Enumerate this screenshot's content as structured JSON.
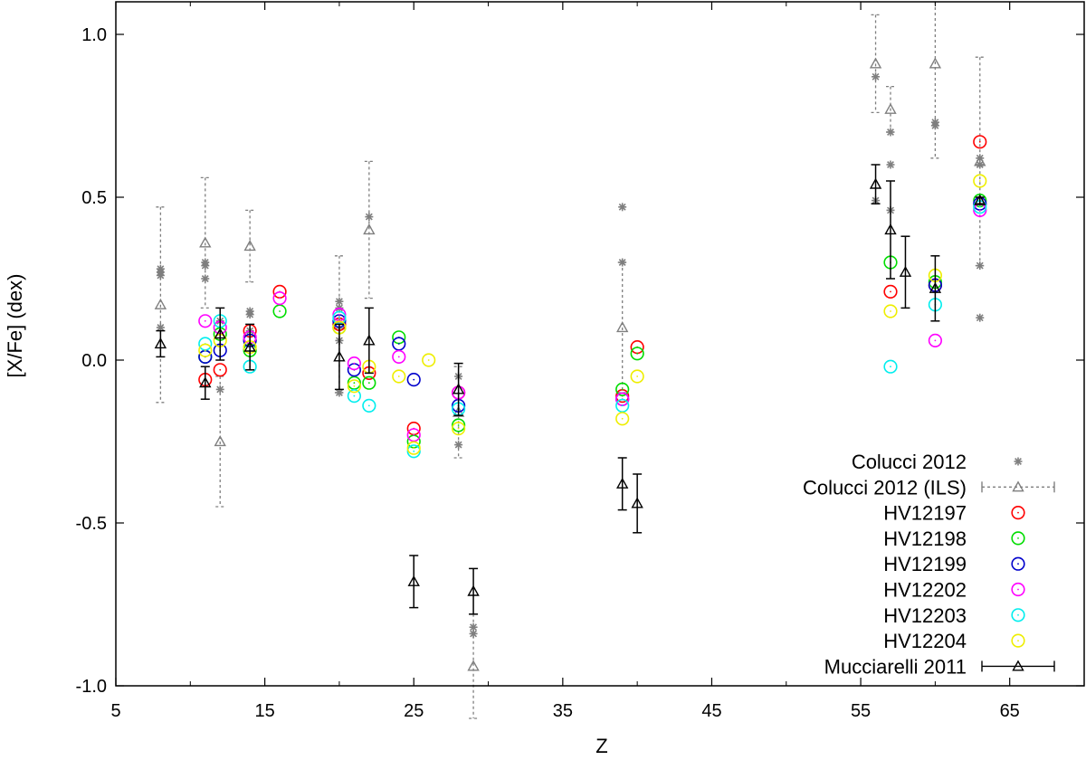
{
  "chart_data": {
    "type": "scatter",
    "xlabel": "Z",
    "ylabel": "[X/Fe] (dex)",
    "xlim": [
      5,
      70
    ],
    "ylim": [
      -1.0,
      1.1
    ],
    "x_ticks": [
      5,
      15,
      25,
      35,
      45,
      55,
      65
    ],
    "y_ticks": [
      -1.0,
      -0.5,
      0.0,
      0.5,
      1.0
    ],
    "x_tick_labels": [
      "5",
      "15",
      "25",
      "35",
      "45",
      "55",
      "65"
    ],
    "y_tick_labels": [
      "-1.0",
      "-0.5",
      "0.0",
      "0.5",
      "1.0"
    ],
    "grid": false,
    "legend_position": "bottom-right",
    "series": [
      {
        "name": "Colucci 2012",
        "marker": "asterisk",
        "color": "#7f7f7f",
        "points": [
          [
            8,
            0.28
          ],
          [
            8,
            0.27
          ],
          [
            8,
            0.26
          ],
          [
            8,
            0.1
          ],
          [
            11,
            0.3
          ],
          [
            11,
            0.29
          ],
          [
            11,
            0.25
          ],
          [
            12,
            0.12
          ],
          [
            12,
            -0.09
          ],
          [
            14,
            0.15
          ],
          [
            14,
            0.14
          ],
          [
            14,
            0.09
          ],
          [
            20,
            0.18
          ],
          [
            20,
            0.16
          ],
          [
            20,
            0.06
          ],
          [
            20,
            -0.1
          ],
          [
            22,
            0.44
          ],
          [
            28,
            -0.05
          ],
          [
            28,
            -0.26
          ],
          [
            29,
            -0.82
          ],
          [
            29,
            -0.84
          ],
          [
            39,
            0.47
          ],
          [
            39,
            0.3
          ],
          [
            56,
            0.87
          ],
          [
            56,
            0.49
          ],
          [
            57,
            0.7
          ],
          [
            57,
            0.6
          ],
          [
            57,
            0.46
          ],
          [
            60,
            0.73
          ],
          [
            60,
            0.72
          ],
          [
            63,
            0.62
          ],
          [
            63,
            0.6
          ],
          [
            63,
            0.29
          ],
          [
            63,
            0.13
          ]
        ]
      },
      {
        "name": "Colucci 2012 (ILS)",
        "marker": "triangle",
        "color": "#7f7f7f",
        "points": [
          [
            8,
            0.17,
            0.3
          ],
          [
            11,
            0.36,
            0.2
          ],
          [
            12,
            -0.25,
            0.2
          ],
          [
            14,
            0.35,
            0.11
          ],
          [
            20,
            0.11,
            0.21
          ],
          [
            22,
            0.4,
            0.21
          ],
          [
            28,
            -0.16,
            0.14
          ],
          [
            29,
            -0.94,
            0.16
          ],
          [
            39,
            0.1,
            0.2
          ],
          [
            56,
            0.91,
            0.15
          ],
          [
            57,
            0.77,
            0.07
          ],
          [
            60,
            0.91,
            0.29
          ],
          [
            63,
            0.61,
            0.32
          ]
        ]
      },
      {
        "name": "HV12197",
        "marker": "circle",
        "color": "#ff0000",
        "points": [
          [
            11,
            -0.06
          ],
          [
            12,
            -0.03
          ],
          [
            14,
            0.09
          ],
          [
            16,
            0.21
          ],
          [
            20,
            0.11
          ],
          [
            22,
            -0.04
          ],
          [
            25,
            -0.21
          ],
          [
            28,
            -0.1
          ],
          [
            39,
            -0.11
          ],
          [
            40,
            0.04
          ],
          [
            57,
            0.21
          ],
          [
            60,
            0.23
          ],
          [
            63,
            0.67
          ]
        ]
      },
      {
        "name": "HV12198",
        "marker": "circle",
        "color": "#00dd00",
        "points": [
          [
            11,
            0.01
          ],
          [
            12,
            0.08
          ],
          [
            14,
            0.03
          ],
          [
            16,
            0.15
          ],
          [
            20,
            0.1
          ],
          [
            21,
            -0.07
          ],
          [
            22,
            -0.07
          ],
          [
            24,
            0.07
          ],
          [
            25,
            -0.25
          ],
          [
            28,
            -0.2
          ],
          [
            39,
            -0.09
          ],
          [
            40,
            0.02
          ],
          [
            57,
            0.3
          ],
          [
            60,
            0.24
          ],
          [
            63,
            0.49
          ]
        ]
      },
      {
        "name": "HV12199",
        "marker": "circle",
        "color": "#0000cc",
        "points": [
          [
            11,
            0.01
          ],
          [
            12,
            0.03
          ],
          [
            14,
            0.06
          ],
          [
            20,
            0.12
          ],
          [
            21,
            -0.03
          ],
          [
            24,
            0.05
          ],
          [
            25,
            -0.06
          ],
          [
            28,
            -0.14
          ],
          [
            39,
            -0.12
          ],
          [
            60,
            0.23
          ],
          [
            63,
            0.48
          ]
        ]
      },
      {
        "name": "HV12202",
        "marker": "circle",
        "color": "#ff00ff",
        "points": [
          [
            11,
            0.12
          ],
          [
            12,
            0.1
          ],
          [
            14,
            0.07
          ],
          [
            16,
            0.19
          ],
          [
            20,
            0.14
          ],
          [
            21,
            -0.01
          ],
          [
            24,
            0.01
          ],
          [
            25,
            -0.23
          ],
          [
            28,
            -0.1
          ],
          [
            39,
            -0.12
          ],
          [
            60,
            0.06
          ],
          [
            63,
            0.46
          ]
        ]
      },
      {
        "name": "HV12203",
        "marker": "circle",
        "color": "#00eeee",
        "points": [
          [
            11,
            0.05
          ],
          [
            12,
            0.12
          ],
          [
            14,
            -0.02
          ],
          [
            20,
            0.13
          ],
          [
            21,
            -0.11
          ],
          [
            22,
            -0.14
          ],
          [
            25,
            -0.28
          ],
          [
            28,
            -0.15
          ],
          [
            39,
            -0.14
          ],
          [
            57,
            -0.02
          ],
          [
            60,
            0.17
          ],
          [
            63,
            0.47
          ]
        ]
      },
      {
        "name": "HV12204",
        "marker": "circle",
        "color": "#eeee00",
        "points": [
          [
            11,
            0.03
          ],
          [
            12,
            0.06
          ],
          [
            14,
            0.04
          ],
          [
            20,
            0.1
          ],
          [
            21,
            -0.08
          ],
          [
            22,
            -0.02
          ],
          [
            24,
            -0.05
          ],
          [
            25,
            -0.27
          ],
          [
            26,
            0.0
          ],
          [
            28,
            -0.21
          ],
          [
            39,
            -0.18
          ],
          [
            40,
            -0.05
          ],
          [
            57,
            0.15
          ],
          [
            60,
            0.26
          ],
          [
            63,
            0.55
          ]
        ]
      },
      {
        "name": "Mucciarelli 2011",
        "marker": "triangle",
        "color": "#000000",
        "points": [
          [
            8,
            0.05,
            0.04
          ],
          [
            11,
            -0.07,
            0.05
          ],
          [
            12,
            0.08,
            0.08
          ],
          [
            14,
            0.04,
            0.07
          ],
          [
            20,
            0.01,
            0.1
          ],
          [
            22,
            0.06,
            0.1
          ],
          [
            25,
            -0.68,
            0.08
          ],
          [
            28,
            -0.09,
            0.08
          ],
          [
            29,
            -0.71,
            0.07
          ],
          [
            39,
            -0.38,
            0.08
          ],
          [
            40,
            -0.44,
            0.09
          ],
          [
            56,
            0.54,
            0.06
          ],
          [
            57,
            0.4,
            0.15
          ],
          [
            58,
            0.27,
            0.11
          ],
          [
            60,
            0.22,
            0.1
          ],
          [
            63,
            0.49,
            0.01
          ]
        ]
      }
    ]
  }
}
